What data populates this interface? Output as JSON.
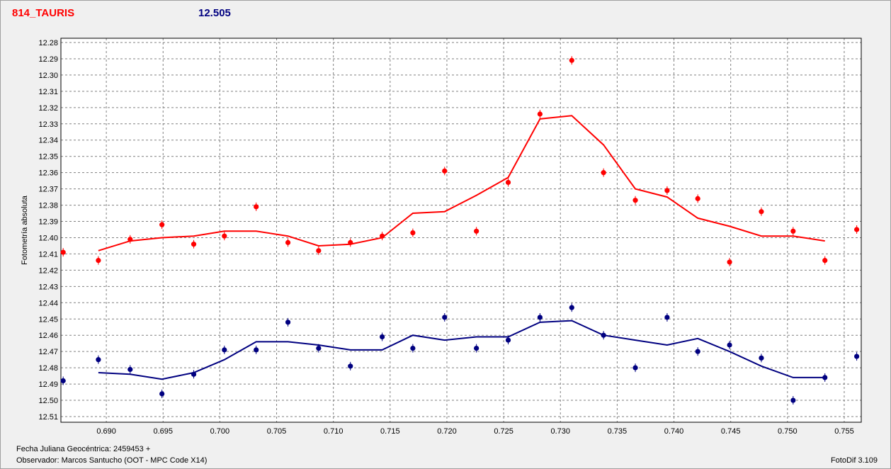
{
  "header": {
    "object_name": "814_TAURIS",
    "mean_magnitude": "12.505"
  },
  "footer": {
    "jd_label": "Fecha Juliana Geocéntrica: 2459453 +",
    "observer_label": "Observador: Marcos Santucho (OOT - MPC Code X14)",
    "software": "FotoDif 3.109"
  },
  "colors": {
    "red_series": "#ff0000",
    "blue_series": "#000080",
    "plot_bg": "#ffffff",
    "grid": "#808080"
  },
  "chart_data": {
    "type": "scatter",
    "title": "",
    "xlabel": "",
    "ylabel": "Fotometría absoluta",
    "xlim": [
      0.686,
      0.7565
    ],
    "ylim": [
      12.28,
      12.51
    ],
    "y_inverted": true,
    "grid": true,
    "legend": "none",
    "x_ticks": [
      "0.690",
      "0.695",
      "0.700",
      "0.705",
      "0.710",
      "0.715",
      "0.720",
      "0.725",
      "0.730",
      "0.735",
      "0.740",
      "0.745",
      "0.750",
      "0.755"
    ],
    "y_ticks": [
      "12.28",
      "12.29",
      "12.30",
      "12.31",
      "12.32",
      "12.33",
      "12.34",
      "12.35",
      "12.36",
      "12.37",
      "12.38",
      "12.39",
      "12.40",
      "12.41",
      "12.42",
      "12.43",
      "12.44",
      "12.45",
      "12.46",
      "12.47",
      "12.48",
      "12.49",
      "12.50",
      "12.51"
    ],
    "series": [
      {
        "color": "#ff0000",
        "points": [
          [
            0.6862,
            12.409
          ],
          [
            0.6893,
            12.414
          ],
          [
            0.6921,
            12.401
          ],
          [
            0.6949,
            12.392
          ],
          [
            0.6977,
            12.404
          ],
          [
            0.7004,
            12.399
          ],
          [
            0.7032,
            12.381
          ],
          [
            0.706,
            12.403
          ],
          [
            0.7087,
            12.408
          ],
          [
            0.7115,
            12.403
          ],
          [
            0.7143,
            12.399
          ],
          [
            0.717,
            12.397
          ],
          [
            0.7198,
            12.359
          ],
          [
            0.7226,
            12.396
          ],
          [
            0.7254,
            12.366
          ],
          [
            0.7282,
            12.324
          ],
          [
            0.731,
            12.291
          ],
          [
            0.7338,
            12.36
          ],
          [
            0.7366,
            12.377
          ],
          [
            0.7394,
            12.371
          ],
          [
            0.7421,
            12.376
          ],
          [
            0.7449,
            12.415
          ],
          [
            0.7477,
            12.384
          ],
          [
            0.7505,
            12.396
          ],
          [
            0.7533,
            12.414
          ],
          [
            0.7561,
            12.395
          ]
        ],
        "fit": [
          [
            0.6893,
            12.408
          ],
          [
            0.6921,
            12.402
          ],
          [
            0.6949,
            12.4
          ],
          [
            0.6977,
            12.399
          ],
          [
            0.7004,
            12.396
          ],
          [
            0.7032,
            12.396
          ],
          [
            0.706,
            12.399
          ],
          [
            0.7087,
            12.405
          ],
          [
            0.7115,
            12.404
          ],
          [
            0.7143,
            12.4
          ],
          [
            0.717,
            12.385
          ],
          [
            0.7198,
            12.384
          ],
          [
            0.7226,
            12.374
          ],
          [
            0.7254,
            12.363
          ],
          [
            0.7282,
            12.327
          ],
          [
            0.731,
            12.325
          ],
          [
            0.7338,
            12.343
          ],
          [
            0.7366,
            12.37
          ],
          [
            0.7394,
            12.375
          ],
          [
            0.7421,
            12.388
          ],
          [
            0.7449,
            12.393
          ],
          [
            0.7477,
            12.399
          ],
          [
            0.7505,
            12.399
          ],
          [
            0.7533,
            12.402
          ]
        ]
      },
      {
        "color": "#000080",
        "points": [
          [
            0.6862,
            12.488
          ],
          [
            0.6893,
            12.475
          ],
          [
            0.6921,
            12.481
          ],
          [
            0.6949,
            12.496
          ],
          [
            0.6977,
            12.484
          ],
          [
            0.7004,
            12.469
          ],
          [
            0.7032,
            12.469
          ],
          [
            0.706,
            12.452
          ],
          [
            0.7087,
            12.468
          ],
          [
            0.7115,
            12.479
          ],
          [
            0.7143,
            12.461
          ],
          [
            0.717,
            12.468
          ],
          [
            0.7198,
            12.449
          ],
          [
            0.7226,
            12.468
          ],
          [
            0.7254,
            12.463
          ],
          [
            0.7282,
            12.449
          ],
          [
            0.731,
            12.443
          ],
          [
            0.7338,
            12.46
          ],
          [
            0.7366,
            12.48
          ],
          [
            0.7394,
            12.449
          ],
          [
            0.7421,
            12.47
          ],
          [
            0.7449,
            12.466
          ],
          [
            0.7477,
            12.474
          ],
          [
            0.7505,
            12.5
          ],
          [
            0.7533,
            12.486
          ],
          [
            0.7561,
            12.473
          ]
        ],
        "fit": [
          [
            0.6893,
            12.483
          ],
          [
            0.6921,
            12.484
          ],
          [
            0.6949,
            12.487
          ],
          [
            0.6977,
            12.483
          ],
          [
            0.7004,
            12.475
          ],
          [
            0.7032,
            12.464
          ],
          [
            0.706,
            12.464
          ],
          [
            0.7087,
            12.466
          ],
          [
            0.7115,
            12.469
          ],
          [
            0.7143,
            12.469
          ],
          [
            0.717,
            12.46
          ],
          [
            0.7198,
            12.463
          ],
          [
            0.7226,
            12.461
          ],
          [
            0.7254,
            12.461
          ],
          [
            0.7282,
            12.452
          ],
          [
            0.731,
            12.451
          ],
          [
            0.7338,
            12.46
          ],
          [
            0.7366,
            12.463
          ],
          [
            0.7394,
            12.466
          ],
          [
            0.7421,
            12.462
          ],
          [
            0.7449,
            12.47
          ],
          [
            0.7477,
            12.479
          ],
          [
            0.7505,
            12.486
          ],
          [
            0.7533,
            12.486
          ]
        ]
      }
    ]
  }
}
